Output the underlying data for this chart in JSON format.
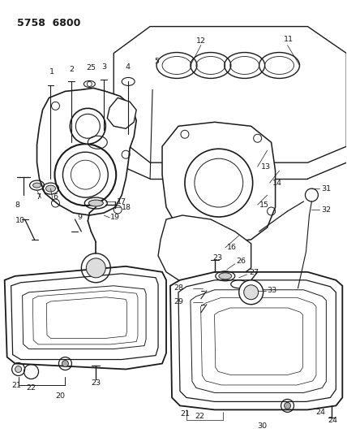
{
  "title": "5758  6800",
  "bg_color": "#ffffff",
  "lc": "#1a1a1a",
  "fig_width": 4.28,
  "fig_height": 5.33,
  "dpi": 100
}
